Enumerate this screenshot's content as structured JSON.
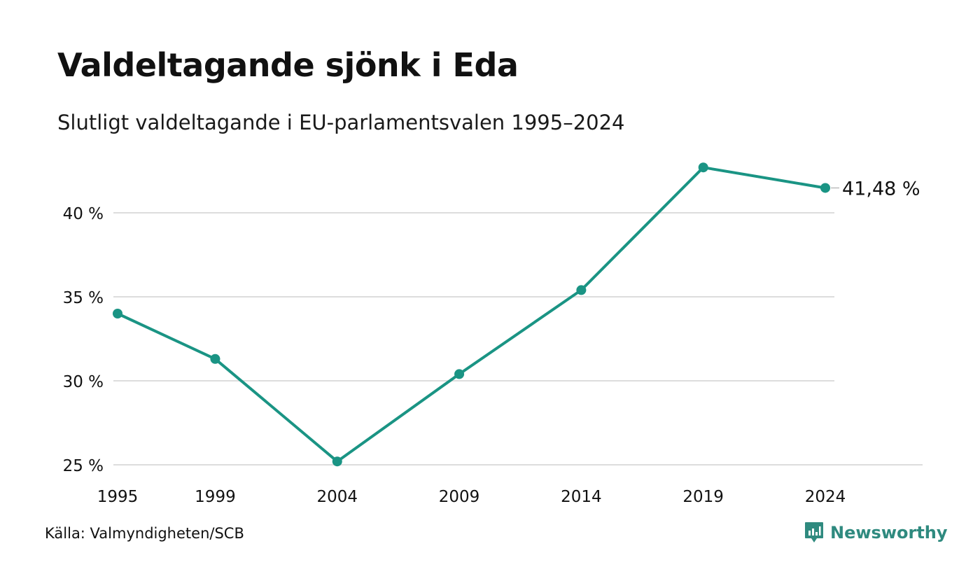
{
  "header": {
    "title": "Valdeltagande sjönk i Eda",
    "subtitle": "Slutligt valdeltagande i EU-parlamentsvalen 1995–2024"
  },
  "footer": {
    "source": "Källa: Valmyndigheten/SCB",
    "brand": "Newsworthy"
  },
  "colors": {
    "line": "#1a9484",
    "grid": "#dddddd",
    "brand": "#2f8a7f"
  },
  "chart_data": {
    "type": "line",
    "title": "Valdeltagande sjönk i Eda",
    "subtitle": "Slutligt valdeltagande i EU-parlamentsvalen 1995–2024",
    "x": [
      1995,
      1999,
      2004,
      2009,
      2014,
      2019,
      2024
    ],
    "x_tick_labels": [
      "1995",
      "1999",
      "2004",
      "2009",
      "2014",
      "2019",
      "2024"
    ],
    "series": [
      {
        "values": [
          34.0,
          31.3,
          25.2,
          30.4,
          35.4,
          42.7,
          41.48
        ]
      }
    ],
    "y_ticks": [
      25,
      30,
      35,
      40
    ],
    "y_tick_labels": [
      "25 %",
      "30 %",
      "35 %",
      "40 %"
    ],
    "ylim": [
      25,
      44
    ],
    "xlim": [
      1995,
      2024
    ],
    "grid": true,
    "end_label": "41,48 %",
    "legend": "none"
  }
}
